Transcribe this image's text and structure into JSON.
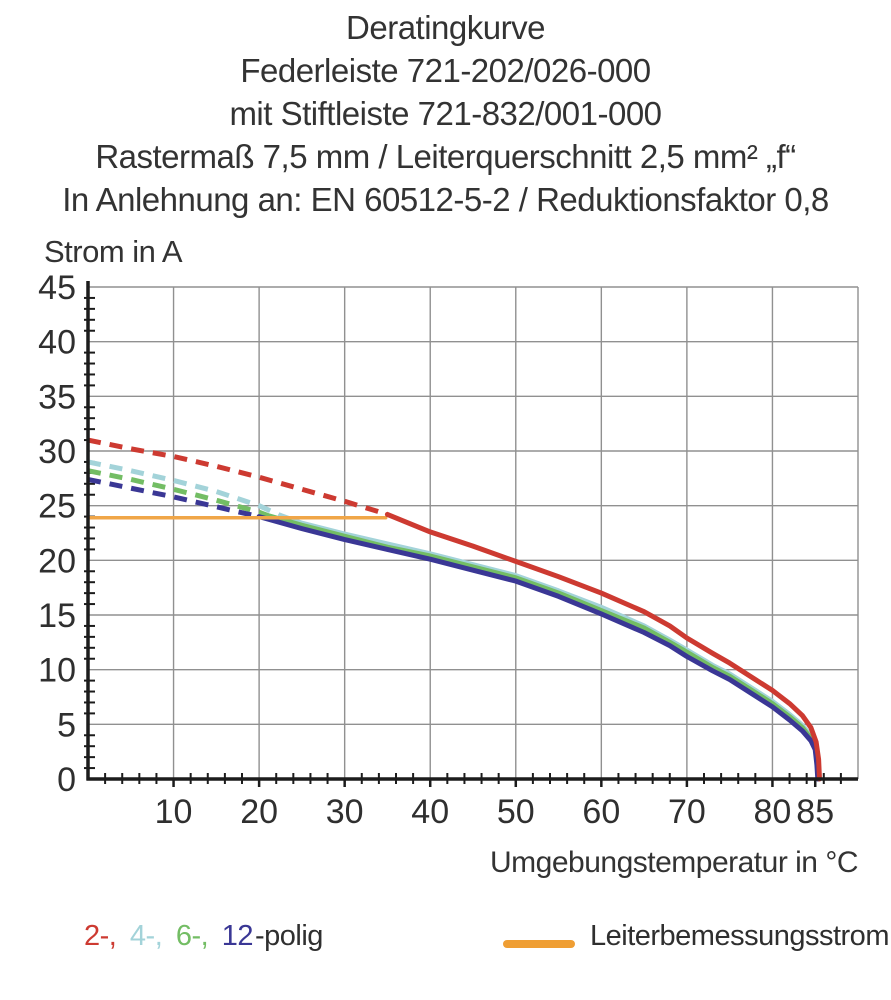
{
  "header": {
    "lines": [
      "Deratingkurve",
      "Federleiste 721-202/026-000",
      "mit Stiftleiste 721-832/001-000",
      "Rastermaß 7,5 mm / Leiterquerschnitt 2,5 mm² „f“",
      "In Anlehnung an: EN 60512-5-2 / Reduktionsfaktor 0,8"
    ]
  },
  "chart": {
    "y_axis_label": "Strom in A",
    "x_axis_label": "Umgebungstemperatur in °C"
  },
  "chart_data": {
    "type": "line",
    "title": "Deratingkurve",
    "xlabel": "Umgebungstemperatur in °C",
    "ylabel": "Strom in A",
    "xlim": [
      0,
      90
    ],
    "ylim": [
      0,
      45
    ],
    "grid": true,
    "x_major_ticks": [
      10,
      20,
      30,
      40,
      50,
      60,
      70,
      80,
      85
    ],
    "x_tick_labels": [
      "10",
      "20",
      "30",
      "40",
      "50",
      "60",
      "70",
      "80",
      "85"
    ],
    "x_grid_step": 10,
    "y_major_ticks": [
      0,
      5,
      10,
      15,
      20,
      25,
      30,
      35,
      40,
      45
    ],
    "x_minor_step": 2,
    "y_minor_step": 1,
    "colors": {
      "red": "#cd3a31",
      "cyan": "#a3d3d9",
      "green": "#73bd64",
      "blue": "#3a3795",
      "orange": "#f0a648",
      "grid": "#909090",
      "axis": "#1c1c1c",
      "tick_text": "#2f2f2f"
    },
    "series": [
      {
        "name": "4-polig",
        "color_key": "cyan",
        "segments": [
          {
            "style": "dashed",
            "points": [
              [
                0,
                29.0
              ],
              [
                5,
                28.2
              ],
              [
                10,
                27.3
              ],
              [
                15,
                26.3
              ],
              [
                20,
                25.0
              ],
              [
                22.5,
                24.1
              ]
            ]
          },
          {
            "style": "solid",
            "points": [
              [
                22.5,
                24.1
              ],
              [
                25,
                23.4
              ],
              [
                30,
                22.4
              ],
              [
                35,
                21.5
              ],
              [
                40,
                20.6
              ],
              [
                45,
                19.6
              ],
              [
                50,
                18.6
              ],
              [
                55,
                17.2
              ],
              [
                60,
                15.7
              ],
              [
                65,
                14.0
              ],
              [
                68,
                12.7
              ],
              [
                70,
                11.8
              ],
              [
                73,
                10.4
              ],
              [
                75,
                9.6
              ],
              [
                78,
                8.1
              ],
              [
                80,
                7.1
              ],
              [
                82,
                5.9
              ],
              [
                83.5,
                4.9
              ],
              [
                84.5,
                3.9
              ],
              [
                85,
                3.0
              ],
              [
                85.3,
                1.5
              ],
              [
                85.4,
                0
              ]
            ]
          }
        ]
      },
      {
        "name": "6-polig",
        "color_key": "green",
        "segments": [
          {
            "style": "dashed",
            "points": [
              [
                0,
                28.2
              ],
              [
                5,
                27.4
              ],
              [
                10,
                26.5
              ],
              [
                15,
                25.5
              ],
              [
                20,
                24.4
              ],
              [
                21,
                24.1
              ]
            ]
          },
          {
            "style": "solid",
            "points": [
              [
                21,
                24.1
              ],
              [
                25,
                23.2
              ],
              [
                30,
                22.2
              ],
              [
                35,
                21.2
              ],
              [
                40,
                20.4
              ],
              [
                45,
                19.4
              ],
              [
                50,
                18.4
              ],
              [
                55,
                17.0
              ],
              [
                60,
                15.4
              ],
              [
                65,
                13.8
              ],
              [
                68,
                12.5
              ],
              [
                70,
                11.6
              ],
              [
                73,
                10.2
              ],
              [
                75,
                9.4
              ],
              [
                78,
                7.9
              ],
              [
                80,
                6.9
              ],
              [
                82,
                5.7
              ],
              [
                83.5,
                4.7
              ],
              [
                84.5,
                3.7
              ],
              [
                85,
                2.9
              ],
              [
                85.3,
                1.4
              ],
              [
                85.4,
                0
              ]
            ]
          }
        ]
      },
      {
        "name": "12-polig",
        "color_key": "blue",
        "segments": [
          {
            "style": "dashed",
            "points": [
              [
                0,
                27.4
              ],
              [
                5,
                26.6
              ],
              [
                10,
                25.8
              ],
              [
                15,
                24.9
              ],
              [
                20,
                24.0
              ]
            ]
          },
          {
            "style": "solid",
            "points": [
              [
                20,
                24.0
              ],
              [
                25,
                22.9
              ],
              [
                30,
                21.9
              ],
              [
                35,
                21.0
              ],
              [
                40,
                20.1
              ],
              [
                45,
                19.1
              ],
              [
                50,
                18.1
              ],
              [
                55,
                16.7
              ],
              [
                60,
                15.1
              ],
              [
                65,
                13.4
              ],
              [
                68,
                12.2
              ],
              [
                70,
                11.2
              ],
              [
                73,
                9.9
              ],
              [
                75,
                9.1
              ],
              [
                78,
                7.6
              ],
              [
                80,
                6.6
              ],
              [
                82,
                5.4
              ],
              [
                83.5,
                4.4
              ],
              [
                84.5,
                3.5
              ],
              [
                85,
                2.7
              ],
              [
                85.2,
                1.3
              ],
              [
                85.3,
                0
              ]
            ]
          }
        ]
      },
      {
        "name": "Leiterbemessungsstrom",
        "color_key": "orange",
        "width": 3.5,
        "segments": [
          {
            "style": "solid",
            "points": [
              [
                0,
                23.9
              ],
              [
                34.8,
                23.9
              ]
            ]
          }
        ]
      },
      {
        "name": "2-polig",
        "color_key": "red",
        "segments": [
          {
            "style": "dashed",
            "points": [
              [
                0,
                31.0
              ],
              [
                5,
                30.2
              ],
              [
                10,
                29.5
              ],
              [
                15,
                28.6
              ],
              [
                20,
                27.6
              ],
              [
                25,
                26.5
              ],
              [
                30,
                25.4
              ],
              [
                35,
                24.2
              ]
            ]
          },
          {
            "style": "solid",
            "points": [
              [
                35,
                24.2
              ],
              [
                40,
                22.6
              ],
              [
                45,
                21.3
              ],
              [
                50,
                19.9
              ],
              [
                55,
                18.5
              ],
              [
                60,
                17.0
              ],
              [
                65,
                15.3
              ],
              [
                68,
                14.0
              ],
              [
                70,
                12.9
              ],
              [
                73,
                11.5
              ],
              [
                75,
                10.6
              ],
              [
                78,
                9.1
              ],
              [
                80,
                8.1
              ],
              [
                82,
                6.9
              ],
              [
                83.5,
                5.8
              ],
              [
                84.5,
                4.7
              ],
              [
                85.1,
                3.4
              ],
              [
                85.4,
                1.8
              ],
              [
                85.5,
                0
              ]
            ]
          }
        ]
      }
    ]
  },
  "legend": {
    "poles": {
      "items": [
        {
          "label": "2-,",
          "color": "#cd3a31"
        },
        {
          "label": "4-,",
          "color": "#a3d3d9"
        },
        {
          "label": "6-,",
          "color": "#73bd64"
        },
        {
          "label": "12",
          "color": "#3a3795"
        }
      ],
      "suffix": "-polig"
    },
    "rated_current": {
      "label": "Leiterbemessungsstrom",
      "color": "#ef9e33"
    }
  }
}
